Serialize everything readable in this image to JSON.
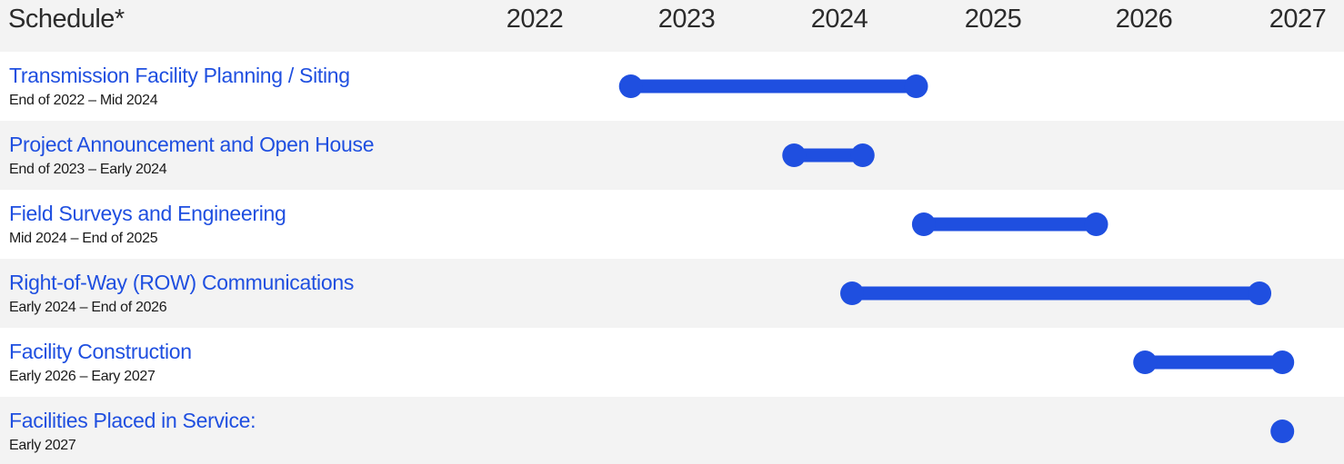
{
  "header": {
    "title": "Schedule*"
  },
  "colors": {
    "accent": "#1f4fe0",
    "row_shade": "#f3f3f3",
    "text": "#2b2b2b"
  },
  "chart_data": {
    "type": "gantt",
    "title": "Schedule*",
    "x_ticks": [
      "2022",
      "2023",
      "2024",
      "2025",
      "2026",
      "2027"
    ],
    "xlim": [
      2022,
      2027
    ],
    "tasks": [
      {
        "name": "Transmission Facility Planning / Siting",
        "dates_label": "End of 2022 – Mid 2024",
        "start": 2022.63,
        "end": 2024.5
      },
      {
        "name": "Project Announcement and Open House",
        "dates_label": "End of 2023 – Early 2024",
        "start": 2023.7,
        "end": 2024.15
      },
      {
        "name": "Field Surveys and Engineering",
        "dates_label": "Mid 2024 – End of 2025",
        "start": 2024.55,
        "end": 2025.68
      },
      {
        "name": "Right-of-Way (ROW) Communications",
        "dates_label": "Early 2024 – End of 2026",
        "start": 2024.08,
        "end": 2026.75
      },
      {
        "name": "Facility Construction",
        "dates_label": "Early 2026 – Eary 2027",
        "start": 2026.0,
        "end": 2026.9
      },
      {
        "name": "Facilities Placed in Service:",
        "dates_label": "Early 2027",
        "start": 2026.9,
        "end": 2026.9
      }
    ]
  }
}
